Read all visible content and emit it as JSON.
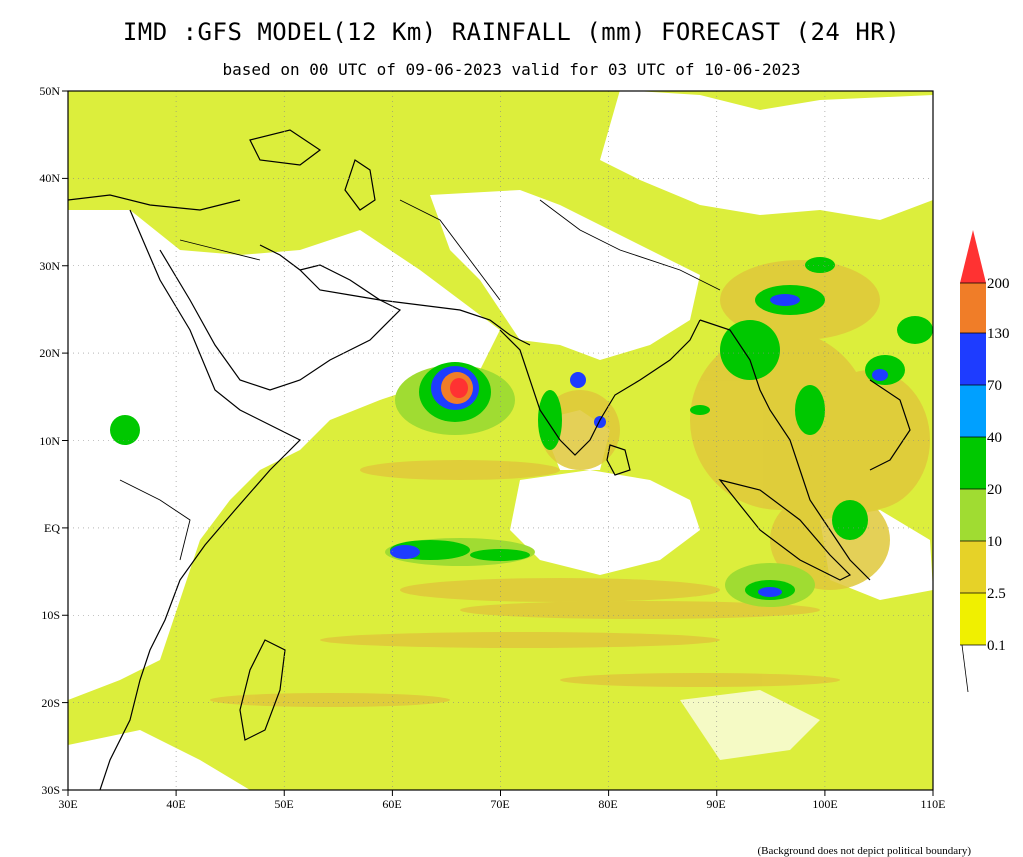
{
  "title": "IMD :GFS MODEL(12 Km) RAINFALL (mm) FORECAST (24 HR)",
  "subtitle": "based on 00 UTC of 09-06-2023 valid for 03 UTC of 10-06-2023",
  "footnote": "(Background does not depict political boundary)",
  "axes": {
    "lat_labels": [
      "50N",
      "40N",
      "30N",
      "20N",
      "10N",
      "EQ",
      "10S",
      "20S",
      "30S"
    ],
    "lon_labels": [
      "30E",
      "40E",
      "50E",
      "60E",
      "70E",
      "80E",
      "90E",
      "100E",
      "110E"
    ]
  },
  "legend": {
    "levels": [
      "0.1",
      "2.5",
      "10",
      "20",
      "40",
      "70",
      "130",
      "200"
    ],
    "colors": [
      "#f0f000",
      "#e6d228",
      "#a0dc32",
      "#00c800",
      "#00a0ff",
      "#1e3cff",
      "#f07d28",
      "#ff3232"
    ]
  },
  "colors": {
    "light_rain": "#dcee3c",
    "moderate_rain": "#e0c83a",
    "coast": "#000000"
  }
}
